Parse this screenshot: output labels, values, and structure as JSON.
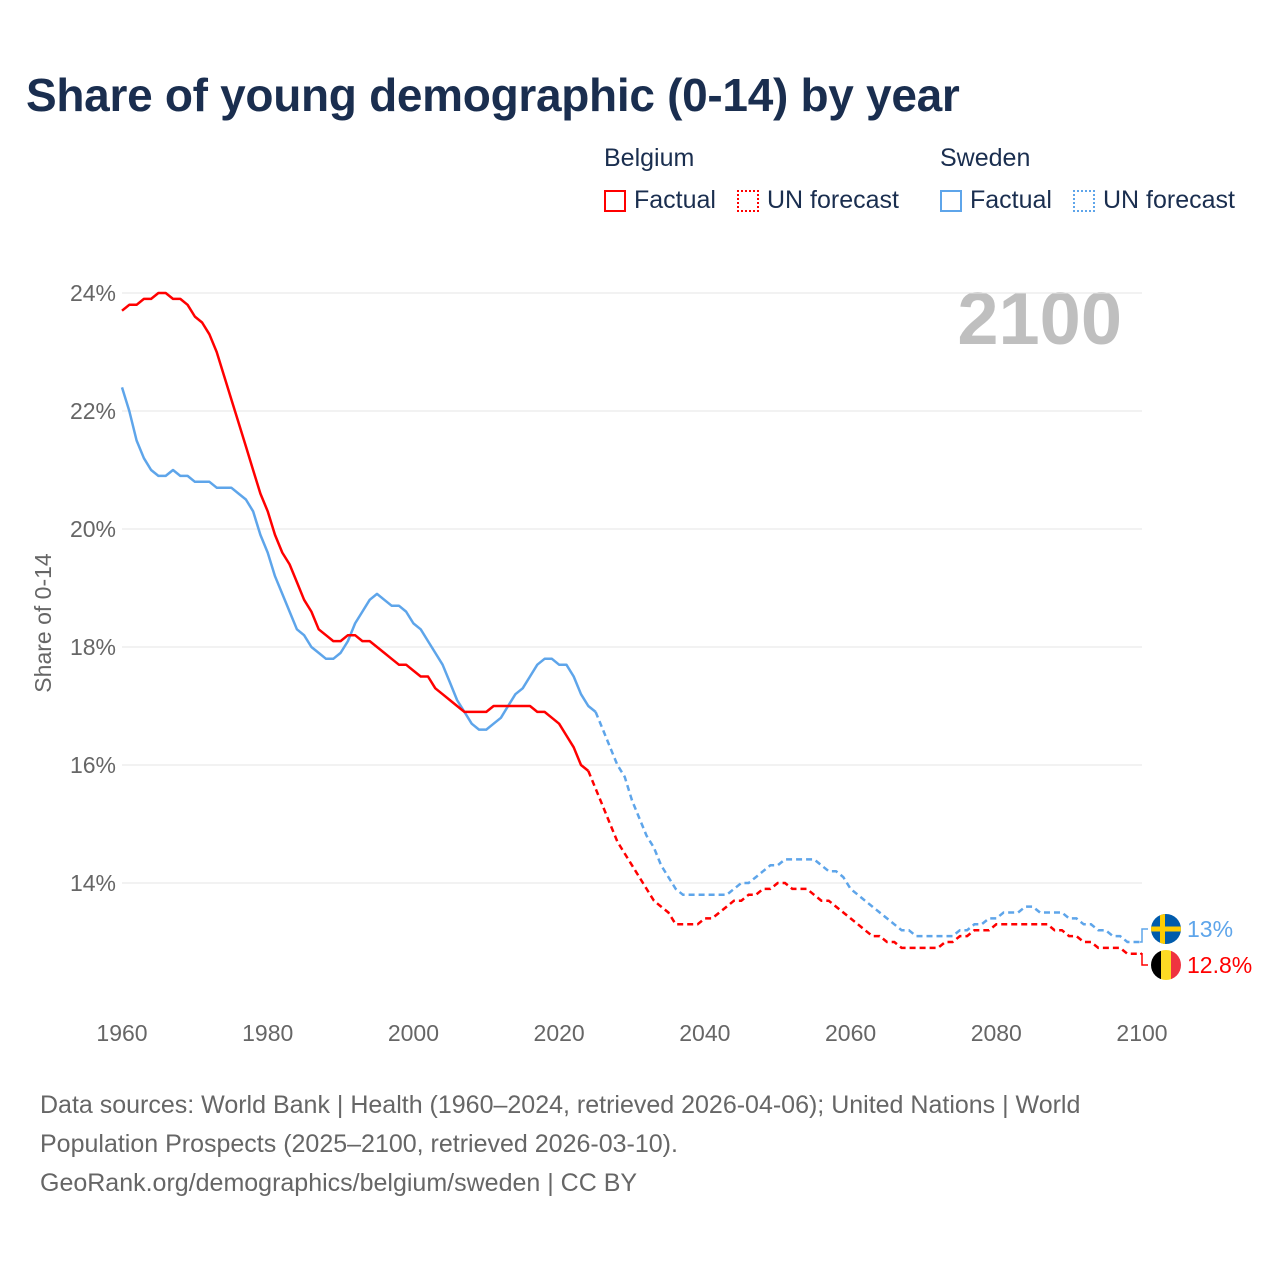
{
  "chart_data": {
    "type": "line",
    "title": "Share of young demographic (0-14) by year",
    "xlabel": "",
    "ylabel": "Share of 0-14",
    "xlim": [
      1960,
      2100
    ],
    "ylim": [
      12.2,
      24.0
    ],
    "x_ticks": [
      1960,
      1980,
      2000,
      2020,
      2040,
      2060,
      2080,
      2100
    ],
    "x_tick_labels": [
      "1960",
      "1980",
      "2000",
      "2020",
      "2040",
      "2060",
      "2080",
      "2100"
    ],
    "y_ticks": [
      14,
      16,
      18,
      20,
      22,
      24
    ],
    "y_tick_labels": [
      "14%",
      "16%",
      "18%",
      "20%",
      "22%",
      "24%"
    ],
    "grid": true,
    "highlight_year": "2100",
    "legend": {
      "placement": "top-right",
      "groups": [
        {
          "name": "Belgium",
          "factual_label": "Factual",
          "forecast_label": "UN forecast",
          "color": "#ff0000"
        },
        {
          "name": "Sweden",
          "factual_label": "Factual",
          "forecast_label": "UN forecast",
          "color": "#5ea5ea"
        }
      ]
    },
    "series": [
      {
        "name": "Belgium",
        "color": "#ff0000",
        "end_label": "12.8%",
        "flag": "belgium-flag",
        "factual": {
          "x": [
            1960,
            1961,
            1962,
            1963,
            1964,
            1965,
            1966,
            1967,
            1968,
            1969,
            1970,
            1971,
            1972,
            1973,
            1974,
            1975,
            1976,
            1977,
            1978,
            1979,
            1980,
            1981,
            1982,
            1983,
            1984,
            1985,
            1986,
            1987,
            1988,
            1989,
            1990,
            1991,
            1992,
            1993,
            1994,
            1995,
            1996,
            1997,
            1998,
            1999,
            2000,
            2001,
            2002,
            2003,
            2004,
            2005,
            2006,
            2007,
            2008,
            2009,
            2010,
            2011,
            2012,
            2013,
            2014,
            2015,
            2016,
            2017,
            2018,
            2019,
            2020,
            2021,
            2022,
            2023,
            2024
          ],
          "y": [
            23.7,
            23.8,
            23.8,
            23.9,
            23.9,
            24.0,
            24.0,
            23.9,
            23.9,
            23.8,
            23.6,
            23.5,
            23.3,
            23.0,
            22.6,
            22.2,
            21.8,
            21.4,
            21.0,
            20.6,
            20.3,
            19.9,
            19.6,
            19.4,
            19.1,
            18.8,
            18.6,
            18.3,
            18.2,
            18.1,
            18.1,
            18.2,
            18.2,
            18.1,
            18.1,
            18.0,
            17.9,
            17.8,
            17.7,
            17.7,
            17.6,
            17.5,
            17.5,
            17.3,
            17.2,
            17.1,
            17.0,
            16.9,
            16.9,
            16.9,
            16.9,
            17.0,
            17.0,
            17.0,
            17.0,
            17.0,
            17.0,
            16.9,
            16.9,
            16.8,
            16.7,
            16.5,
            16.3,
            16.0,
            15.9
          ]
        },
        "forecast": {
          "x": [
            2024,
            2025,
            2026,
            2027,
            2028,
            2029,
            2030,
            2031,
            2032,
            2033,
            2034,
            2035,
            2036,
            2037,
            2038,
            2039,
            2040,
            2041,
            2042,
            2043,
            2044,
            2045,
            2046,
            2047,
            2048,
            2049,
            2050,
            2051,
            2052,
            2053,
            2054,
            2055,
            2056,
            2057,
            2058,
            2059,
            2060,
            2061,
            2062,
            2063,
            2064,
            2065,
            2066,
            2067,
            2068,
            2069,
            2070,
            2071,
            2072,
            2073,
            2074,
            2075,
            2076,
            2077,
            2078,
            2079,
            2080,
            2081,
            2082,
            2083,
            2084,
            2085,
            2086,
            2087,
            2088,
            2089,
            2090,
            2091,
            2092,
            2093,
            2094,
            2095,
            2096,
            2097,
            2098,
            2099,
            2100
          ],
          "y": [
            15.9,
            15.6,
            15.3,
            15.0,
            14.7,
            14.5,
            14.3,
            14.1,
            13.9,
            13.7,
            13.6,
            13.5,
            13.3,
            13.3,
            13.3,
            13.3,
            13.4,
            13.4,
            13.5,
            13.6,
            13.7,
            13.7,
            13.8,
            13.8,
            13.9,
            13.9,
            14.0,
            14.0,
            13.9,
            13.9,
            13.9,
            13.8,
            13.7,
            13.7,
            13.6,
            13.5,
            13.4,
            13.3,
            13.2,
            13.1,
            13.1,
            13.0,
            13.0,
            12.9,
            12.9,
            12.9,
            12.9,
            12.9,
            12.9,
            13.0,
            13.0,
            13.1,
            13.1,
            13.2,
            13.2,
            13.2,
            13.3,
            13.3,
            13.3,
            13.3,
            13.3,
            13.3,
            13.3,
            13.3,
            13.2,
            13.2,
            13.1,
            13.1,
            13.0,
            13.0,
            12.9,
            12.9,
            12.9,
            12.9,
            12.8,
            12.8,
            12.8
          ]
        }
      },
      {
        "name": "Sweden",
        "color": "#5ea5ea",
        "end_label": "13%",
        "flag": "sweden-flag",
        "factual": {
          "x": [
            1960,
            1961,
            1962,
            1963,
            1964,
            1965,
            1966,
            1967,
            1968,
            1969,
            1970,
            1971,
            1972,
            1973,
            1974,
            1975,
            1976,
            1977,
            1978,
            1979,
            1980,
            1981,
            1982,
            1983,
            1984,
            1985,
            1986,
            1987,
            1988,
            1989,
            1990,
            1991,
            1992,
            1993,
            1994,
            1995,
            1996,
            1997,
            1998,
            1999,
            2000,
            2001,
            2002,
            2003,
            2004,
            2005,
            2006,
            2007,
            2008,
            2009,
            2010,
            2011,
            2012,
            2013,
            2014,
            2015,
            2016,
            2017,
            2018,
            2019,
            2020,
            2021,
            2022,
            2023,
            2024,
            2025
          ],
          "y": [
            22.4,
            22.0,
            21.5,
            21.2,
            21.0,
            20.9,
            20.9,
            21.0,
            20.9,
            20.9,
            20.8,
            20.8,
            20.8,
            20.7,
            20.7,
            20.7,
            20.6,
            20.5,
            20.3,
            19.9,
            19.6,
            19.2,
            18.9,
            18.6,
            18.3,
            18.2,
            18.0,
            17.9,
            17.8,
            17.8,
            17.9,
            18.1,
            18.4,
            18.6,
            18.8,
            18.9,
            18.8,
            18.7,
            18.7,
            18.6,
            18.4,
            18.3,
            18.1,
            17.9,
            17.7,
            17.4,
            17.1,
            16.9,
            16.7,
            16.6,
            16.6,
            16.7,
            16.8,
            17.0,
            17.2,
            17.3,
            17.5,
            17.7,
            17.8,
            17.8,
            17.7,
            17.7,
            17.5,
            17.2,
            17.0,
            16.9
          ]
        },
        "forecast": {
          "x": [
            2025,
            2026,
            2027,
            2028,
            2029,
            2030,
            2031,
            2032,
            2033,
            2034,
            2035,
            2036,
            2037,
            2038,
            2039,
            2040,
            2041,
            2042,
            2043,
            2044,
            2045,
            2046,
            2047,
            2048,
            2049,
            2050,
            2051,
            2052,
            2053,
            2054,
            2055,
            2056,
            2057,
            2058,
            2059,
            2060,
            2061,
            2062,
            2063,
            2064,
            2065,
            2066,
            2067,
            2068,
            2069,
            2070,
            2071,
            2072,
            2073,
            2074,
            2075,
            2076,
            2077,
            2078,
            2079,
            2080,
            2081,
            2082,
            2083,
            2084,
            2085,
            2086,
            2087,
            2088,
            2089,
            2090,
            2091,
            2092,
            2093,
            2094,
            2095,
            2096,
            2097,
            2098,
            2099,
            2100
          ],
          "y": [
            16.9,
            16.6,
            16.3,
            16.0,
            15.8,
            15.4,
            15.1,
            14.8,
            14.6,
            14.3,
            14.1,
            13.9,
            13.8,
            13.8,
            13.8,
            13.8,
            13.8,
            13.8,
            13.8,
            13.9,
            14.0,
            14.0,
            14.1,
            14.2,
            14.3,
            14.3,
            14.4,
            14.4,
            14.4,
            14.4,
            14.4,
            14.3,
            14.2,
            14.2,
            14.1,
            13.9,
            13.8,
            13.7,
            13.6,
            13.5,
            13.4,
            13.3,
            13.2,
            13.2,
            13.1,
            13.1,
            13.1,
            13.1,
            13.1,
            13.1,
            13.2,
            13.2,
            13.3,
            13.3,
            13.4,
            13.4,
            13.5,
            13.5,
            13.5,
            13.6,
            13.6,
            13.5,
            13.5,
            13.5,
            13.5,
            13.4,
            13.4,
            13.3,
            13.3,
            13.2,
            13.2,
            13.1,
            13.1,
            13.0,
            13.0,
            13.0
          ]
        }
      }
    ]
  },
  "footer": {
    "sources": "Data sources: World Bank | Health (1960–2024, retrieved 2026-04-06); United Nations | World Population Prospects (2025–2100, retrieved 2026-03-10).",
    "credit": "GeoRank.org/demographics/belgium/sweden | CC BY"
  }
}
